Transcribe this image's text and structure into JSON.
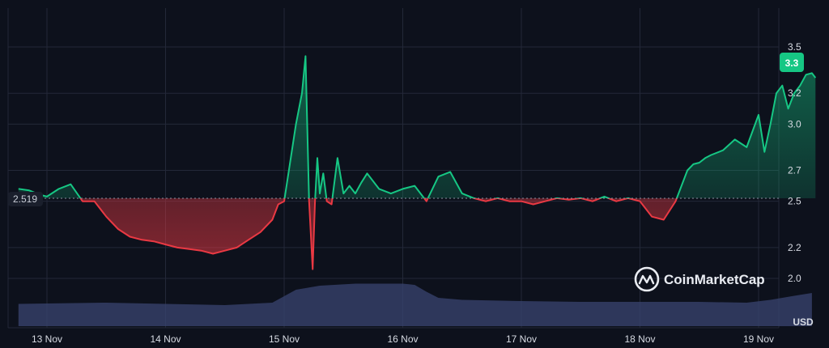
{
  "chart_data": {
    "type": "area",
    "baseline_value": 2.519,
    "baseline_label": "2.519",
    "current_value": 3.3,
    "current_label": "3.3",
    "unit": "USD",
    "ylim": [
      1.8,
      3.65
    ],
    "y_ticks": [
      {
        "value": 2.0,
        "label": "2.0"
      },
      {
        "value": 2.2,
        "label": "2.2"
      },
      {
        "value": 2.5,
        "label": "2.5"
      },
      {
        "value": 2.7,
        "label": "2.7"
      },
      {
        "value": 3.0,
        "label": "3.0"
      },
      {
        "value": 3.2,
        "label": "3.2"
      },
      {
        "value": 3.5,
        "label": "3.5"
      }
    ],
    "xlim": [
      12.75,
      19.5
    ],
    "x_ticks": [
      {
        "value": 13,
        "label": "13 Nov"
      },
      {
        "value": 14,
        "label": "14 Nov"
      },
      {
        "value": 15,
        "label": "15 Nov"
      },
      {
        "value": 16,
        "label": "16 Nov"
      },
      {
        "value": 17,
        "label": "17 Nov"
      },
      {
        "value": 18,
        "label": "18 Nov"
      },
      {
        "value": 19,
        "label": "19 Nov"
      }
    ],
    "price_series": {
      "x": [
        12.76,
        12.85,
        12.95,
        13.0,
        13.1,
        13.2,
        13.3,
        13.4,
        13.5,
        13.6,
        13.7,
        13.8,
        13.9,
        14.0,
        14.1,
        14.2,
        14.3,
        14.4,
        14.5,
        14.6,
        14.7,
        14.8,
        14.9,
        14.95,
        15.0,
        15.05,
        15.1,
        15.15,
        15.18,
        15.21,
        15.24,
        15.26,
        15.28,
        15.3,
        15.33,
        15.36,
        15.4,
        15.45,
        15.5,
        15.55,
        15.6,
        15.65,
        15.7,
        15.8,
        15.9,
        16.0,
        16.1,
        16.2,
        16.3,
        16.4,
        16.5,
        16.6,
        16.7,
        16.8,
        16.9,
        17.0,
        17.1,
        17.2,
        17.3,
        17.4,
        17.5,
        17.6,
        17.7,
        17.8,
        17.9,
        18.0,
        18.1,
        18.2,
        18.3,
        18.4,
        18.45,
        18.5,
        18.55,
        18.6,
        18.7,
        18.8,
        18.9,
        19.0,
        19.05,
        19.1,
        19.15,
        19.2,
        19.25,
        19.3,
        19.35,
        19.4,
        19.45,
        19.48
      ],
      "y": [
        2.58,
        2.57,
        2.54,
        2.53,
        2.58,
        2.61,
        2.5,
        2.5,
        2.4,
        2.32,
        2.27,
        2.25,
        2.24,
        2.22,
        2.2,
        2.19,
        2.18,
        2.16,
        2.18,
        2.2,
        2.25,
        2.3,
        2.38,
        2.48,
        2.5,
        2.75,
        3.0,
        3.2,
        3.44,
        2.5,
        2.06,
        2.5,
        2.78,
        2.55,
        2.68,
        2.5,
        2.48,
        2.78,
        2.55,
        2.6,
        2.55,
        2.62,
        2.68,
        2.58,
        2.55,
        2.58,
        2.6,
        2.5,
        2.66,
        2.69,
        2.55,
        2.52,
        2.5,
        2.52,
        2.5,
        2.5,
        2.48,
        2.5,
        2.52,
        2.51,
        2.52,
        2.5,
        2.53,
        2.5,
        2.52,
        2.5,
        2.4,
        2.38,
        2.5,
        2.7,
        2.74,
        2.75,
        2.78,
        2.8,
        2.83,
        2.9,
        2.85,
        3.06,
        2.82,
        3.0,
        3.2,
        3.25,
        3.1,
        3.2,
        3.25,
        3.32,
        3.33,
        3.3
      ]
    },
    "volume_series": {
      "x": [
        12.76,
        13.5,
        14.0,
        14.5,
        14.9,
        15.1,
        15.3,
        15.6,
        16.0,
        16.1,
        16.2,
        16.3,
        16.5,
        17.0,
        17.5,
        18.0,
        18.5,
        18.9,
        19.1,
        19.3,
        19.45
      ],
      "v": [
        0.55,
        0.58,
        0.55,
        0.52,
        0.58,
        0.9,
        1.0,
        1.05,
        1.05,
        1.02,
        0.85,
        0.7,
        0.65,
        0.62,
        0.6,
        0.6,
        0.6,
        0.58,
        0.65,
        0.75,
        0.82
      ]
    }
  },
  "watermark": {
    "brand": "CoinMarketCap"
  },
  "colors": {
    "up": "#16c784",
    "down": "#ea3943",
    "grid": "#232838",
    "baseline": "#8a90a0",
    "volume": "#3a4470",
    "badge": "#16c784"
  }
}
